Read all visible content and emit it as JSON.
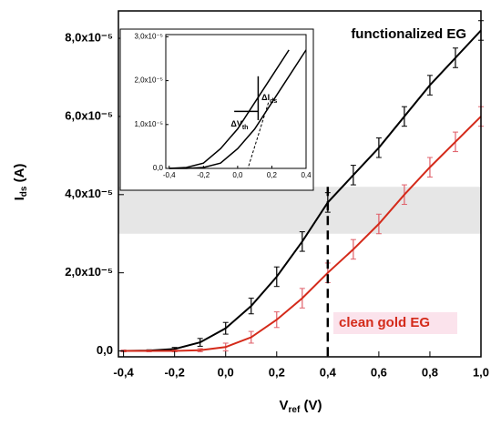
{
  "chart_data": [
    {
      "type": "line",
      "xlabel": [
        "V",
        "ref",
        " (V)"
      ],
      "ylabel": [
        "I",
        "ds",
        " (A)"
      ],
      "xlim": [
        -0.42,
        1.0
      ],
      "ylim": [
        -1.5e-06,
        8.7e-05
      ],
      "xticks": [
        {
          "value": -0.4,
          "label": "-0,4"
        },
        {
          "value": -0.2,
          "label": "-0,2"
        },
        {
          "value": 0,
          "label": "0,0"
        },
        {
          "value": 0.2,
          "label": "0,2"
        },
        {
          "value": 0.4,
          "label": "0,4"
        },
        {
          "value": 0.6,
          "label": "0,6"
        },
        {
          "value": 0.8,
          "label": "0,8"
        },
        {
          "value": 1.0,
          "label": "1,0"
        }
      ],
      "yticks": [
        {
          "value": 0,
          "label": "0,0"
        },
        {
          "value": 2e-05,
          "label": "2,0x10⁻⁵"
        },
        {
          "value": 4e-05,
          "label": "4,0x10⁻⁵"
        },
        {
          "value": 6e-05,
          "label": "6,0x10⁻⁵"
        },
        {
          "value": 8e-05,
          "label": "8,0x10⁻⁵"
        }
      ],
      "band": [
        3e-05,
        4.2e-05
      ],
      "vline": 0.4,
      "x": [
        -0.4,
        -0.3,
        -0.2,
        -0.1,
        0,
        0.1,
        0.2,
        0.3,
        0.4,
        0.5,
        0.6,
        0.7,
        0.8,
        0.9,
        1.0
      ],
      "series": [
        {
          "name": "functionalized EG",
          "color": "#000000",
          "error_color": "#000000",
          "values": [
            0,
            1e-07,
            5e-07,
            2.2e-06,
            5.8e-06,
            1.15e-05,
            1.9e-05,
            2.8e-05,
            3.8e-05,
            4.5e-05,
            5.2e-05,
            6e-05,
            6.8e-05,
            7.5e-05,
            8.2e-05
          ],
          "errors": [
            2e-07,
            2e-07,
            4e-07,
            1e-06,
            1.5e-06,
            2e-06,
            2.5e-06,
            2.5e-06,
            2.5e-06,
            2.5e-06,
            2.5e-06,
            2.5e-06,
            2.5e-06,
            2.5e-06,
            2.5e-06
          ]
        },
        {
          "name": "clean gold EG",
          "color": "#d42a1a",
          "error_color": "#e0606a",
          "values": [
            0,
            0,
            0,
            2e-07,
            1e-06,
            3.5e-06,
            8e-06,
            1.35e-05,
            2e-05,
            2.6e-05,
            3.25e-05,
            4e-05,
            4.7e-05,
            5.35e-05,
            6e-05
          ],
          "errors": [
            2e-07,
            2e-07,
            2e-07,
            4e-07,
            1e-06,
            1.5e-06,
            2e-06,
            2.5e-06,
            2.5e-06,
            2.5e-06,
            2.5e-06,
            2.5e-06,
            2.5e-06,
            2.5e-06,
            2.5e-06
          ]
        }
      ]
    },
    {
      "type": "line",
      "xlim": [
        -0.42,
        0.4
      ],
      "ylim": [
        0,
        3.05e-05
      ],
      "xticks": [
        {
          "value": -0.4,
          "label": "-0,4"
        },
        {
          "value": -0.2,
          "label": "-0,2"
        },
        {
          "value": 0,
          "label": "0,0"
        },
        {
          "value": 0.2,
          "label": "0,2"
        },
        {
          "value": 0.4,
          "label": "0,4"
        }
      ],
      "yticks": [
        {
          "value": 0,
          "label": "0,0"
        },
        {
          "value": 1e-05,
          "label": "1,0x10⁻⁵"
        },
        {
          "value": 2e-05,
          "label": "2,0x10⁻⁵"
        },
        {
          "value": 3e-05,
          "label": "3,0x10⁻⁵"
        }
      ],
      "annotations": [
        [
          "ΔI",
          "ds"
        ],
        [
          "ΔV",
          "th"
        ]
      ],
      "x": [
        -0.4,
        -0.3,
        -0.2,
        -0.1,
        0,
        0.1,
        0.2,
        0.3,
        0.4
      ],
      "series": [
        {
          "color": "#000000",
          "values": [
            0,
            2e-07,
            1.2e-06,
            4.5e-06,
            9e-06,
            1.5e-05,
            2.1e-05,
            2.7e-05,
            null
          ]
        },
        {
          "color": "#000000",
          "values": [
            0,
            0,
            2e-07,
            1.2e-06,
            4.5e-06,
            9e-06,
            1.5e-05,
            2.1e-05,
            2.7e-05
          ]
        }
      ]
    }
  ]
}
